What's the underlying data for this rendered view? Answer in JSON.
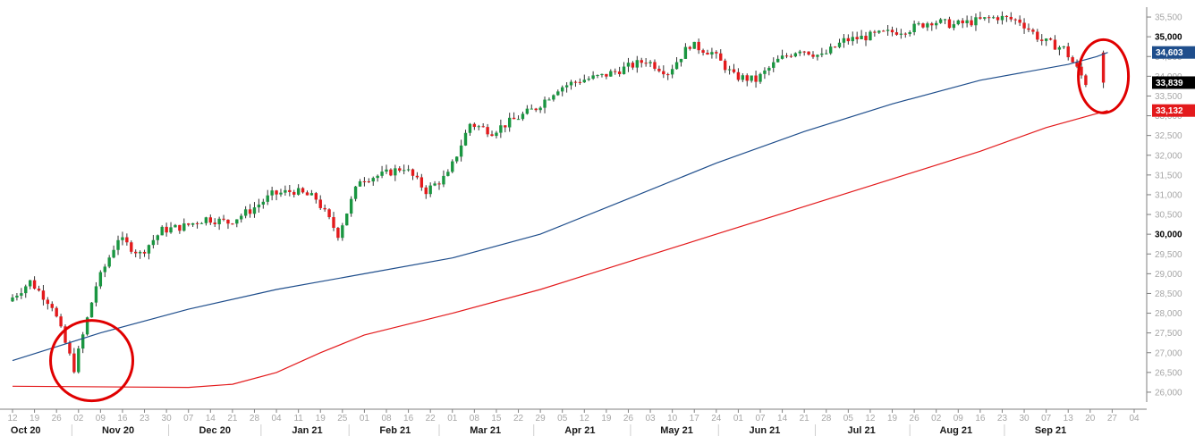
{
  "chart_data": {
    "type": "candlestick",
    "title": "",
    "xlabel": "",
    "ylabel": "",
    "ylim": [
      25750,
      35750
    ],
    "y_ticks": [
      26000,
      26500,
      27000,
      27500,
      28000,
      28500,
      29000,
      29500,
      30000,
      30500,
      31000,
      31500,
      32000,
      32500,
      33000,
      33500,
      34000,
      34500,
      35000,
      35500
    ],
    "y_tick_labels": [
      "26,000",
      "26,500",
      "27,000",
      "27,500",
      "28,000",
      "28,500",
      "29,000",
      "29,500",
      "30,000",
      "30,500",
      "31,000",
      "31,500",
      "32,000",
      "32,500",
      "33,000",
      "33,500",
      "34,000",
      "34,500",
      "35,000",
      "35,500"
    ],
    "y_major_ticks": [
      30000,
      35000
    ],
    "x_day_labels": [
      "12",
      "19",
      "26",
      "02",
      "09",
      "16",
      "23",
      "30",
      "07",
      "14",
      "21",
      "28",
      "04",
      "11",
      "19",
      "25",
      "01",
      "08",
      "16",
      "22",
      "01",
      "08",
      "15",
      "22",
      "29",
      "05",
      "12",
      "19",
      "26",
      "03",
      "10",
      "17",
      "24",
      "01",
      "07",
      "14",
      "21",
      "28",
      "05",
      "12",
      "19",
      "26",
      "02",
      "09",
      "16",
      "23",
      "30",
      "07",
      "13",
      "20",
      "27",
      "04"
    ],
    "x_month_labels": [
      "Oct 20",
      "Nov 20",
      "Dec 20",
      "Jan 21",
      "Feb 21",
      "Mar 21",
      "Apr 21",
      "May 21",
      "Jun 21",
      "Jul 21",
      "Aug 21",
      "Sep 21"
    ],
    "month_label_weeks": [
      0.6,
      4.8,
      9.2,
      13.4,
      17.4,
      21.5,
      25.8,
      30.2,
      34.2,
      38.6,
      42.9,
      47.2
    ],
    "weekly_anchor_closes": [
      28300,
      28800,
      28200,
      26600,
      28700,
      29900,
      29500,
      30100,
      30200,
      30400,
      30300,
      30600,
      31000,
      31100,
      30900,
      30000,
      31400,
      31500,
      31700,
      31100,
      31500,
      32800,
      32600,
      32900,
      33200,
      33700,
      33900,
      34000,
      34200,
      34400,
      34100,
      34800,
      34600,
      34000,
      33900,
      34400,
      34700,
      34500,
      34900,
      35000,
      35100,
      35200,
      35400,
      35300,
      35400,
      35500,
      35400,
      34900,
      34700,
      33839
    ],
    "series": [
      {
        "name": "",
        "kind": "candles",
        "up_color": "#1a9641",
        "down_color": "#e31a1c"
      },
      {
        "name": "",
        "kind": "ma",
        "color": "#1f4e8c",
        "points": [
          [
            0,
            26800
          ],
          [
            4,
            27500
          ],
          [
            8,
            28100
          ],
          [
            12,
            28600
          ],
          [
            16,
            29000
          ],
          [
            20,
            29400
          ],
          [
            24,
            30000
          ],
          [
            28,
            30900
          ],
          [
            32,
            31800
          ],
          [
            36,
            32600
          ],
          [
            40,
            33300
          ],
          [
            44,
            33900
          ],
          [
            48,
            34300
          ],
          [
            49.3,
            34500
          ],
          [
            49.8,
            34603
          ]
        ]
      },
      {
        "name": "",
        "kind": "ma",
        "color": "#e31a1c",
        "points": [
          [
            0,
            26150
          ],
          [
            8,
            26120
          ],
          [
            10,
            26200
          ],
          [
            12,
            26500
          ],
          [
            14,
            27000
          ],
          [
            16,
            27450
          ],
          [
            20,
            28000
          ],
          [
            24,
            28600
          ],
          [
            28,
            29300
          ],
          [
            32,
            30000
          ],
          [
            36,
            30700
          ],
          [
            40,
            31400
          ],
          [
            44,
            32100
          ],
          [
            47,
            32700
          ],
          [
            49.8,
            33132
          ]
        ]
      }
    ],
    "last_price": 33839,
    "ma_fast_value": 34603,
    "ma_slow_value": 33132,
    "labels": {
      "ma_fast": "34,603",
      "last": "33,839",
      "ma_slow": "33,132"
    },
    "colors": {
      "ma_fast_tag": "#1f4e8c",
      "last_tag": "#000000",
      "ma_slow_tag": "#e31a1c",
      "circle": "#e00000"
    }
  }
}
